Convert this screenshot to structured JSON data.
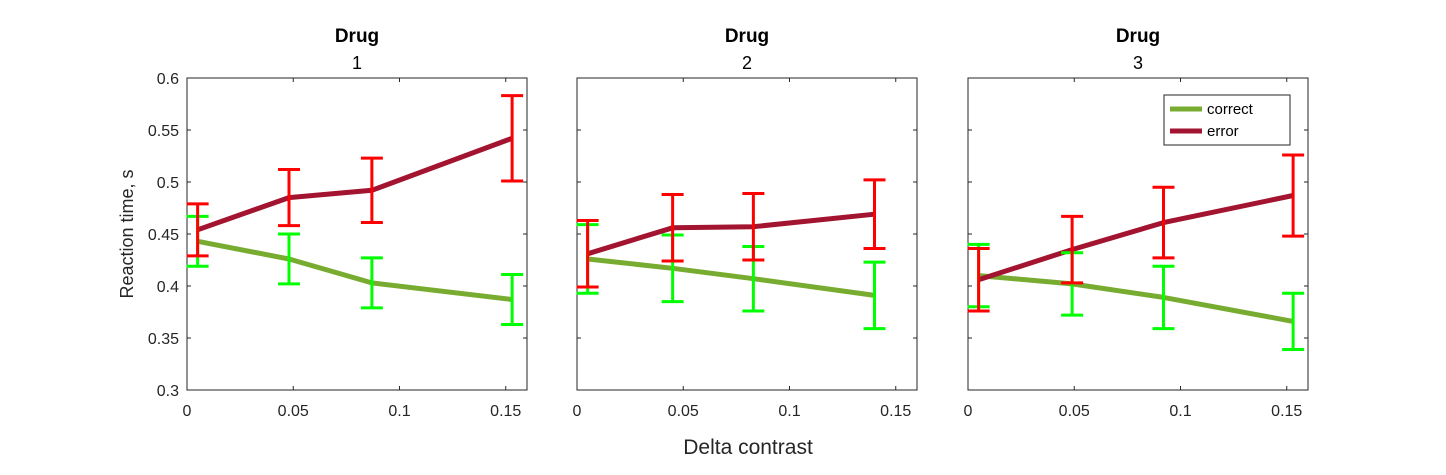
{
  "chart_data": {
    "type": "line",
    "xlabel": "Delta contrast",
    "ylabel": "Reaction time, s",
    "ylim": [
      0.3,
      0.6
    ],
    "xlim": [
      0,
      0.16
    ],
    "yticks": [
      "0.3",
      "0.35",
      "0.4",
      "0.45",
      "0.5",
      "0.55",
      "0.6"
    ],
    "xticks": [
      "0",
      "0.05",
      "0.1",
      "0.15"
    ],
    "grid": false,
    "legend": {
      "position": "top-right",
      "panel": 3,
      "entries": [
        {
          "label": "correct",
          "color": "#77AC30"
        },
        {
          "label": "error",
          "color": "#A2142F"
        }
      ]
    },
    "errorbar_colors": {
      "correct": "#00FF00",
      "error": "#FF0000"
    },
    "panels": [
      {
        "title": "Drug",
        "subtitle": "1",
        "series": [
          {
            "name": "correct",
            "x": [
              0.005,
              0.048,
              0.087,
              0.153
            ],
            "y": [
              0.443,
              0.426,
              0.403,
              0.387
            ],
            "err": [
              0.024,
              0.024,
              0.024,
              0.024
            ]
          },
          {
            "name": "error",
            "x": [
              0.005,
              0.048,
              0.087,
              0.153
            ],
            "y": [
              0.454,
              0.485,
              0.492,
              0.542
            ],
            "err": [
              0.025,
              0.027,
              0.031,
              0.041
            ]
          }
        ]
      },
      {
        "title": "Drug",
        "subtitle": "2",
        "series": [
          {
            "name": "correct",
            "x": [
              0.005,
              0.045,
              0.083,
              0.14
            ],
            "y": [
              0.426,
              0.417,
              0.407,
              0.391
            ],
            "err": [
              0.033,
              0.032,
              0.031,
              0.032
            ]
          },
          {
            "name": "error",
            "x": [
              0.005,
              0.045,
              0.083,
              0.14
            ],
            "y": [
              0.431,
              0.456,
              0.457,
              0.469
            ],
            "err": [
              0.032,
              0.032,
              0.032,
              0.033
            ]
          }
        ]
      },
      {
        "title": "Drug",
        "subtitle": "3",
        "series": [
          {
            "name": "correct",
            "x": [
              0.005,
              0.049,
              0.092,
              0.153
            ],
            "y": [
              0.41,
              0.402,
              0.389,
              0.366
            ],
            "err": [
              0.03,
              0.03,
              0.03,
              0.027
            ]
          },
          {
            "name": "error",
            "x": [
              0.005,
              0.049,
              0.092,
              0.153
            ],
            "y": [
              0.406,
              0.435,
              0.461,
              0.487
            ],
            "err": [
              0.03,
              0.032,
              0.034,
              0.039
            ]
          }
        ]
      }
    ]
  }
}
